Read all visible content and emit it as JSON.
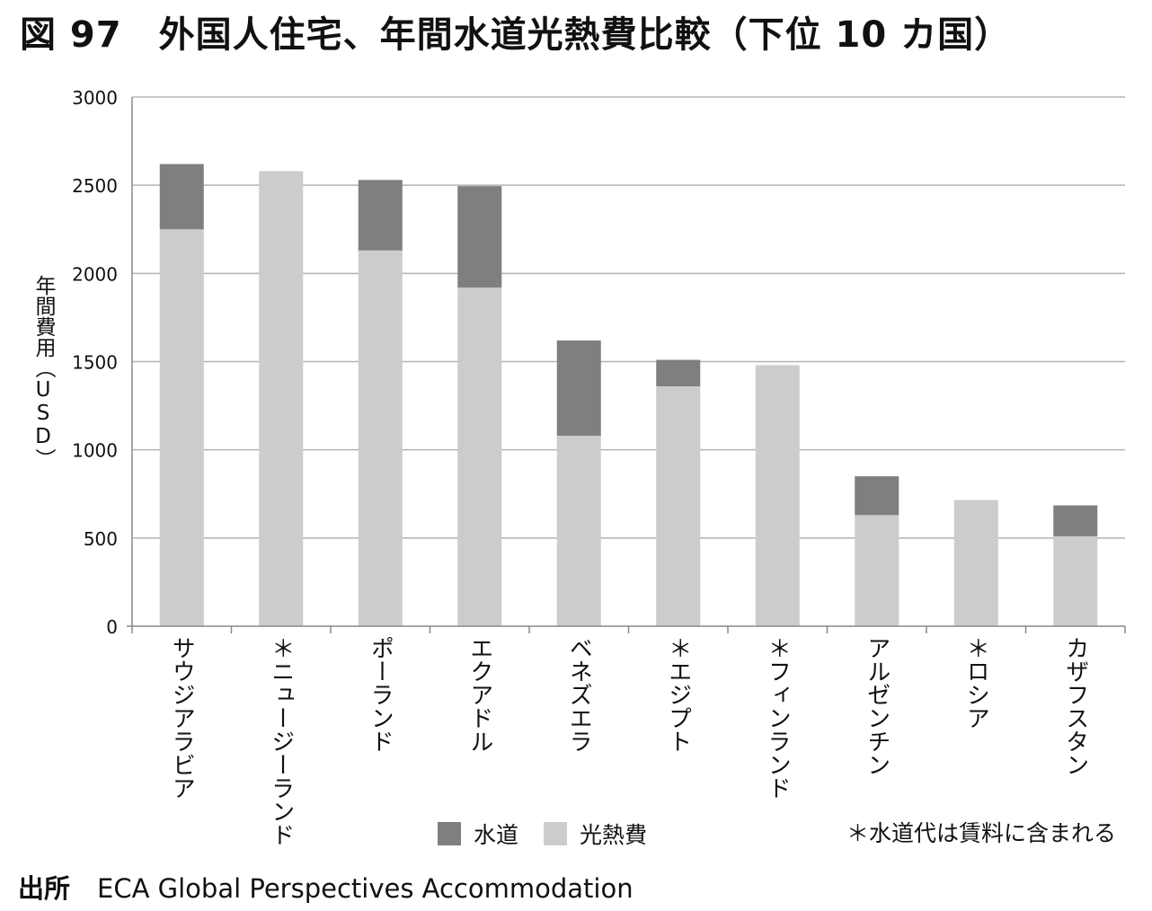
{
  "title": "図 97　外国人住宅、年間水道光熱費比較（下位 10 カ国）",
  "source_label": "出所",
  "source_text": "ECA Global Perspectives Accommodation",
  "footnote": "＊水道代は賃料に含まれる",
  "colors": {
    "water": "#7f7f7f",
    "utilities": "#cccccc",
    "grid": "#b3b3b3",
    "axis": "#888888"
  },
  "chart_data": {
    "type": "bar",
    "stacked": true,
    "title": "",
    "xlabel": "",
    "ylabel": "年間費用（USD）",
    "ylim": [
      0,
      3000
    ],
    "yticks": [
      0,
      500,
      1000,
      1500,
      2000,
      2500,
      3000
    ],
    "grid": true,
    "legend_position": "bottom",
    "categories": [
      "サウジアラビア",
      "＊ニュージーランド",
      "ポーランド",
      "エクアドル",
      "ベネズエラ",
      "＊エジプト",
      "＊フィンランド",
      "アルゼンチン",
      "＊ロシア",
      "カザフスタン"
    ],
    "series": [
      {
        "name": "光熱費",
        "color": "#cccccc",
        "values": [
          2250,
          2580,
          2130,
          1920,
          1080,
          1360,
          1480,
          630,
          715,
          510
        ]
      },
      {
        "name": "水道",
        "color": "#7f7f7f",
        "values": [
          370,
          0,
          400,
          575,
          540,
          150,
          0,
          220,
          0,
          175
        ]
      }
    ],
    "legend_order": [
      "水道",
      "光熱費"
    ]
  }
}
